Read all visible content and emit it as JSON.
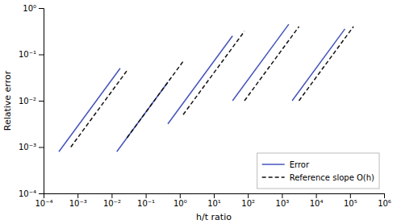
{
  "chart_data": {
    "type": "line",
    "xlabel": "h/t ratio",
    "ylabel": "Relative error",
    "log": true,
    "grid": false,
    "legend": "lower right",
    "xlim": [
      0.0001,
      1000000
    ],
    "ylim": [
      0.0001,
      1
    ],
    "xticks": [
      {
        "value": 0.0001,
        "label": "10⁻⁴"
      },
      {
        "value": 0.001,
        "label": "10⁻³"
      },
      {
        "value": 0.01,
        "label": "10⁻²"
      },
      {
        "value": 0.1,
        "label": "10⁻¹"
      },
      {
        "value": 1,
        "label": "10⁰"
      },
      {
        "value": 10,
        "label": "10¹"
      },
      {
        "value": 100,
        "label": "10²"
      },
      {
        "value": 1000,
        "label": "10³"
      },
      {
        "value": 10000,
        "label": "10⁴"
      },
      {
        "value": 100000,
        "label": "10⁵"
      },
      {
        "value": 1000000,
        "label": "10⁶"
      }
    ],
    "yticks": [
      {
        "value": 0.0001,
        "label": "10⁻⁴"
      },
      {
        "value": 0.001,
        "label": "10⁻³"
      },
      {
        "value": 0.01,
        "label": "10⁻²"
      },
      {
        "value": 0.1,
        "label": "10⁻¹"
      },
      {
        "value": 1,
        "label": "10⁰"
      }
    ],
    "series": [
      {
        "name": "Error",
        "color": "#4455bb",
        "line_style": "solid",
        "x": [
          0.0002818383,
          0.01778279,
          null,
          0.01412538,
          0.4466836,
          null,
          0.4466836,
          35.48134,
          null,
          35.48134,
          1584.893,
          null,
          1995.262,
          70794.58
        ],
        "values": [
          0.0007943282,
          0.05011872,
          null,
          0.0007943282,
          0.02511886,
          null,
          0.003162278,
          0.2511886,
          null,
          0.01,
          0.4466836,
          null,
          0.01,
          0.3548134
        ]
      },
      {
        "name": "Reference slope O(h)",
        "color": "#111111",
        "line_style": "dashed",
        "x": [
          0.0006309573,
          0.02818383,
          null,
          0.02818383,
          1.258925,
          null,
          1.258925,
          79.43282,
          null,
          79.43282,
          3162.278,
          null,
          3162.278,
          125892.5
        ],
        "values": [
          0.001,
          0.04466836,
          null,
          0.001584893,
          0.07079458,
          null,
          0.005011872,
          0.3162278,
          null,
          0.01,
          0.3981072,
          null,
          0.01,
          0.3981072
        ]
      }
    ]
  }
}
